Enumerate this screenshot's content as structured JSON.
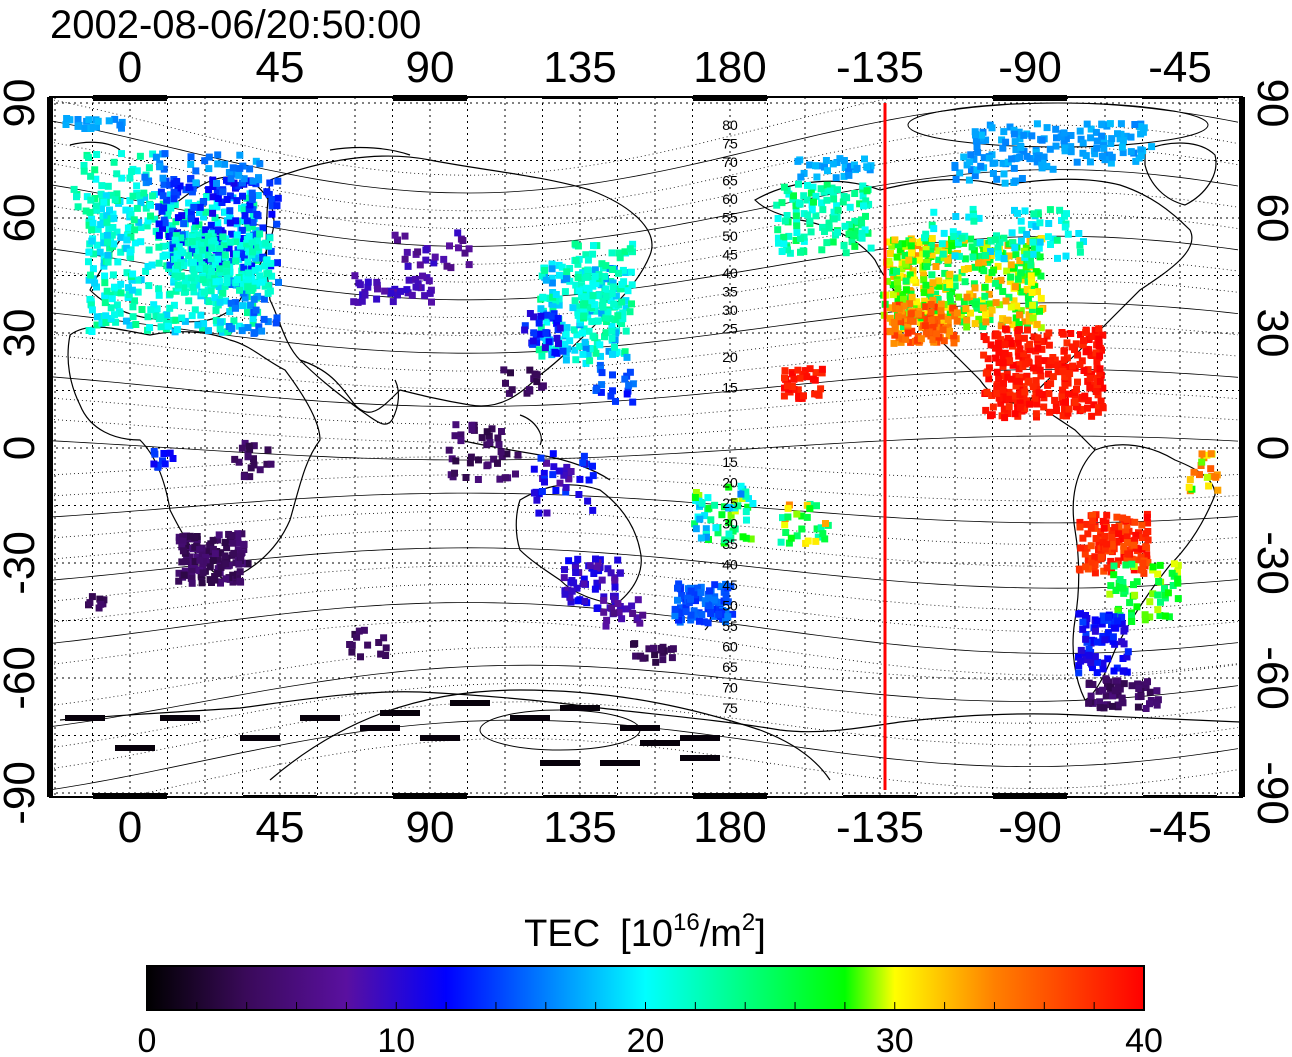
{
  "timestamp": "2002-08-06/20:50:00",
  "map": {
    "lon_ticks": [
      "0",
      "45",
      "90",
      "135",
      "180",
      "-135",
      "-90",
      "-45"
    ],
    "lat_ticks": [
      "90",
      "60",
      "30",
      "0",
      "-30",
      "-60",
      "-90"
    ],
    "grid": true,
    "terminator_color": "#ff0000",
    "contour_labels_north": [
      "80",
      "75",
      "70",
      "65",
      "60",
      "55",
      "50",
      "45",
      "40",
      "35",
      "30",
      "25",
      "20",
      "15"
    ],
    "contour_labels_south": [
      "15",
      "20",
      "25",
      "30",
      "35",
      "40",
      "45",
      "50",
      "55",
      "60",
      "65",
      "70",
      "75"
    ]
  },
  "colorbar": {
    "title": "TEC",
    "unit_prefix": "[10",
    "unit_exp": "16",
    "unit_mid": "/m",
    "unit_exp2": "2",
    "unit_suffix": "]",
    "ticks": [
      "0",
      "10",
      "20",
      "30",
      "40"
    ],
    "range": [
      0,
      40
    ],
    "colors": [
      "#000000",
      "#3a0a5a",
      "#5a10a0",
      "#0000ff",
      "#0080ff",
      "#00ffff",
      "#00ff80",
      "#00ff00",
      "#ffff00",
      "#ff8000",
      "#ff0000"
    ]
  }
}
